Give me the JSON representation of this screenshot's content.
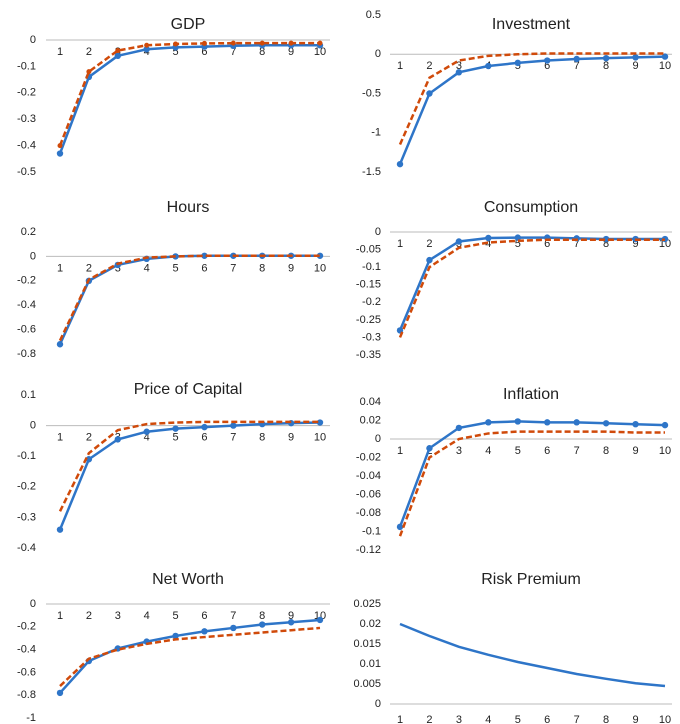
{
  "chart_data": [
    {
      "type": "line",
      "title": "GDP",
      "x": [
        1,
        2,
        3,
        4,
        5,
        6,
        7,
        8,
        9,
        10
      ],
      "ylim": [
        -0.5,
        0
      ],
      "yticks": [
        0,
        -0.1,
        -0.2,
        -0.3,
        -0.4,
        -0.5
      ],
      "series": [
        {
          "color": "#2e75c8",
          "dash": false,
          "marker": true,
          "values": [
            -0.43,
            -0.14,
            -0.06,
            -0.035,
            -0.028,
            -0.025,
            -0.022,
            -0.02,
            -0.02,
            -0.02
          ]
        },
        {
          "color": "#d04a0a",
          "dash": true,
          "marker": true,
          "values": [
            -0.4,
            -0.12,
            -0.04,
            -0.02,
            -0.015,
            -0.013,
            -0.012,
            -0.012,
            -0.012,
            -0.012
          ]
        }
      ]
    },
    {
      "type": "line",
      "title": "Investment",
      "x": [
        1,
        2,
        3,
        4,
        5,
        6,
        7,
        8,
        9,
        10
      ],
      "ylim": [
        -1.5,
        0.5
      ],
      "yticks": [
        0.5,
        0,
        -0.5,
        -1,
        -1.5
      ],
      "series": [
        {
          "color": "#2e75c8",
          "dash": false,
          "marker": true,
          "values": [
            -1.4,
            -0.5,
            -0.23,
            -0.15,
            -0.11,
            -0.08,
            -0.06,
            -0.05,
            -0.04,
            -0.03
          ]
        },
        {
          "color": "#d04a0a",
          "dash": true,
          "marker": false,
          "values": [
            -1.15,
            -0.3,
            -0.08,
            -0.02,
            0.0,
            0.01,
            0.01,
            0.01,
            0.01,
            0.01
          ]
        }
      ]
    },
    {
      "type": "line",
      "title": "Hours",
      "x": [
        1,
        2,
        3,
        4,
        5,
        6,
        7,
        8,
        9,
        10
      ],
      "ylim": [
        -0.8,
        0.2
      ],
      "yticks": [
        0.2,
        0,
        -0.2,
        -0.4,
        -0.6,
        -0.8
      ],
      "series": [
        {
          "color": "#2e75c8",
          "dash": false,
          "marker": true,
          "values": [
            -0.72,
            -0.2,
            -0.07,
            -0.02,
            0,
            0.005,
            0.005,
            0.005,
            0.005,
            0.005
          ]
        },
        {
          "color": "#d04a0a",
          "dash": true,
          "marker": false,
          "values": [
            -0.69,
            -0.19,
            -0.06,
            -0.01,
            0,
            0.005,
            0.005,
            0.005,
            0.005,
            0.005
          ]
        }
      ]
    },
    {
      "type": "line",
      "title": "Consumption",
      "x": [
        1,
        2,
        3,
        4,
        5,
        6,
        7,
        8,
        9,
        10
      ],
      "ylim": [
        -0.35,
        0
      ],
      "yticks": [
        0,
        -0.05,
        -0.1,
        -0.15,
        -0.2,
        -0.25,
        -0.3,
        -0.35
      ],
      "series": [
        {
          "color": "#2e75c8",
          "dash": false,
          "marker": true,
          "values": [
            -0.28,
            -0.08,
            -0.027,
            -0.017,
            -0.016,
            -0.016,
            -0.018,
            -0.02,
            -0.02,
            -0.02
          ]
        },
        {
          "color": "#d04a0a",
          "dash": true,
          "marker": false,
          "values": [
            -0.3,
            -0.1,
            -0.045,
            -0.03,
            -0.025,
            -0.022,
            -0.022,
            -0.022,
            -0.022,
            -0.022
          ]
        }
      ]
    },
    {
      "type": "line",
      "title": "Price of Capital",
      "x": [
        1,
        2,
        3,
        4,
        5,
        6,
        7,
        8,
        9,
        10
      ],
      "ylim": [
        -0.4,
        0.1
      ],
      "yticks": [
        0.1,
        0,
        -0.1,
        -0.2,
        -0.3,
        -0.4
      ],
      "series": [
        {
          "color": "#2e75c8",
          "dash": false,
          "marker": true,
          "values": [
            -0.34,
            -0.11,
            -0.045,
            -0.02,
            -0.01,
            -0.005,
            0,
            0.005,
            0.008,
            0.01
          ]
        },
        {
          "color": "#d04a0a",
          "dash": true,
          "marker": false,
          "values": [
            -0.28,
            -0.09,
            -0.015,
            0.005,
            0.01,
            0.012,
            0.012,
            0.012,
            0.012,
            0.012
          ]
        }
      ]
    },
    {
      "type": "line",
      "title": "Inflation",
      "x": [
        1,
        2,
        3,
        4,
        5,
        6,
        7,
        8,
        9,
        10
      ],
      "ylim": [
        -0.12,
        0.04
      ],
      "yticks": [
        0.04,
        0.02,
        0,
        -0.02,
        -0.04,
        -0.06,
        -0.08,
        -0.1,
        -0.12
      ],
      "series": [
        {
          "color": "#2e75c8",
          "dash": false,
          "marker": true,
          "values": [
            -0.095,
            -0.01,
            0.012,
            0.018,
            0.019,
            0.018,
            0.018,
            0.017,
            0.016,
            0.015
          ]
        },
        {
          "color": "#d04a0a",
          "dash": true,
          "marker": false,
          "values": [
            -0.105,
            -0.02,
            0.0,
            0.006,
            0.008,
            0.008,
            0.008,
            0.008,
            0.007,
            0.007
          ]
        }
      ]
    },
    {
      "type": "line",
      "title": "Net Worth",
      "x": [
        1,
        2,
        3,
        4,
        5,
        6,
        7,
        8,
        9,
        10
      ],
      "ylim": [
        -1,
        0
      ],
      "yticks": [
        0,
        -0.2,
        -0.4,
        -0.6,
        -0.8,
        -1
      ],
      "series": [
        {
          "color": "#2e75c8",
          "dash": false,
          "marker": true,
          "values": [
            -0.78,
            -0.5,
            -0.39,
            -0.33,
            -0.28,
            -0.24,
            -0.21,
            -0.18,
            -0.16,
            -0.14
          ]
        },
        {
          "color": "#d04a0a",
          "dash": true,
          "marker": false,
          "values": [
            -0.72,
            -0.48,
            -0.4,
            -0.35,
            -0.31,
            -0.29,
            -0.27,
            -0.25,
            -0.23,
            -0.21
          ]
        }
      ]
    },
    {
      "type": "line",
      "title": "Risk Premium",
      "x": [
        1,
        2,
        3,
        4,
        5,
        6,
        7,
        8,
        9,
        10
      ],
      "ylim": [
        0,
        0.025
      ],
      "yticks": [
        0.025,
        0.02,
        0.015,
        0.01,
        0.005,
        0
      ],
      "series": [
        {
          "color": "#2e75c8",
          "dash": false,
          "marker": false,
          "values": [
            0.02,
            0.017,
            0.0143,
            0.0123,
            0.0105,
            0.009,
            0.0075,
            0.0063,
            0.0052,
            0.0045
          ]
        }
      ]
    }
  ]
}
